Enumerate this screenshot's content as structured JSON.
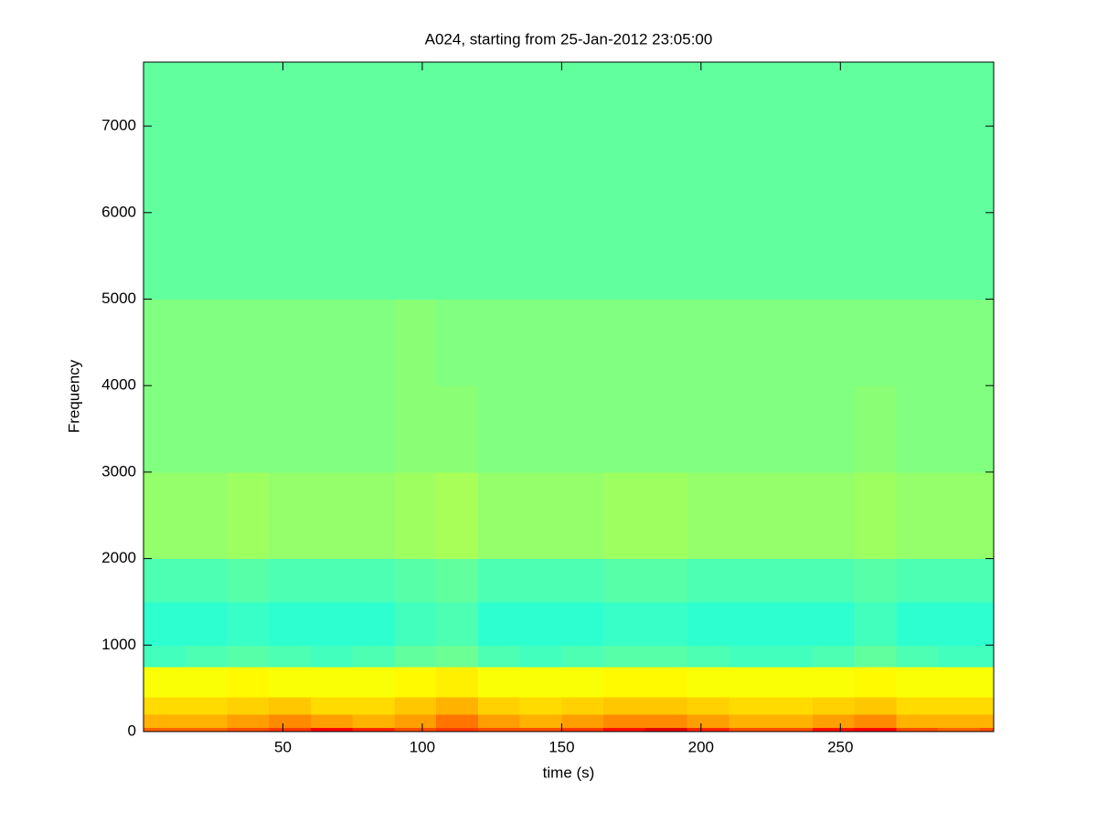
{
  "chart_data": {
    "type": "heatmap",
    "title": "A024, starting from 25-Jan-2012 23:05:00",
    "x_label": "time (s)",
    "y_label": "Frequency",
    "colormap": "jet",
    "zlim": [
      0,
      1
    ],
    "xlim": [
      0,
      305
    ],
    "ylim": [
      0,
      7740
    ],
    "xticks": [
      50,
      100,
      150,
      200,
      250
    ],
    "yticks": [
      0,
      1000,
      2000,
      3000,
      4000,
      5000,
      6000,
      7000
    ],
    "time_bins": [
      0,
      15,
      30,
      45,
      60,
      75,
      90,
      105,
      120,
      135,
      150,
      165,
      180,
      195,
      210,
      225,
      240,
      255,
      270,
      285,
      300,
      305
    ],
    "freq_bins": [
      0,
      50,
      200,
      400,
      750,
      1000,
      1500,
      2000,
      3000,
      4000,
      5000,
      7740
    ],
    "z": [
      [
        0.78,
        0.78,
        0.8,
        0.82,
        0.88,
        0.84,
        0.8,
        0.82,
        0.8,
        0.8,
        0.82,
        0.86,
        0.9,
        0.84,
        0.8,
        0.8,
        0.86,
        0.88,
        0.8,
        0.78,
        0.8
      ],
      [
        0.7,
        0.7,
        0.72,
        0.74,
        0.72,
        0.7,
        0.72,
        0.76,
        0.72,
        0.7,
        0.72,
        0.74,
        0.74,
        0.72,
        0.7,
        0.7,
        0.72,
        0.74,
        0.7,
        0.7,
        0.7
      ],
      [
        0.66,
        0.66,
        0.67,
        0.68,
        0.66,
        0.66,
        0.68,
        0.7,
        0.67,
        0.66,
        0.67,
        0.68,
        0.68,
        0.67,
        0.66,
        0.66,
        0.67,
        0.68,
        0.66,
        0.66,
        0.66
      ],
      [
        0.62,
        0.62,
        0.63,
        0.62,
        0.62,
        0.62,
        0.63,
        0.64,
        0.62,
        0.62,
        0.62,
        0.63,
        0.63,
        0.62,
        0.62,
        0.62,
        0.62,
        0.63,
        0.62,
        0.62,
        0.62
      ],
      [
        0.44,
        0.45,
        0.46,
        0.45,
        0.44,
        0.45,
        0.47,
        0.48,
        0.45,
        0.44,
        0.45,
        0.46,
        0.46,
        0.45,
        0.44,
        0.44,
        0.45,
        0.47,
        0.45,
        0.44,
        0.44
      ],
      [
        0.42,
        0.42,
        0.43,
        0.42,
        0.42,
        0.42,
        0.44,
        0.45,
        0.42,
        0.42,
        0.42,
        0.43,
        0.43,
        0.42,
        0.42,
        0.42,
        0.42,
        0.44,
        0.42,
        0.42,
        0.42
      ],
      [
        0.45,
        0.45,
        0.46,
        0.45,
        0.45,
        0.45,
        0.46,
        0.47,
        0.45,
        0.45,
        0.45,
        0.46,
        0.46,
        0.45,
        0.45,
        0.45,
        0.45,
        0.46,
        0.45,
        0.45,
        0.45
      ],
      [
        0.52,
        0.52,
        0.53,
        0.52,
        0.52,
        0.52,
        0.53,
        0.54,
        0.52,
        0.52,
        0.52,
        0.53,
        0.53,
        0.52,
        0.52,
        0.52,
        0.52,
        0.53,
        0.52,
        0.52,
        0.52
      ],
      [
        0.5,
        0.5,
        0.5,
        0.5,
        0.5,
        0.5,
        0.51,
        0.51,
        0.5,
        0.5,
        0.5,
        0.5,
        0.5,
        0.5,
        0.5,
        0.5,
        0.5,
        0.51,
        0.5,
        0.5,
        0.5
      ],
      [
        0.5,
        0.5,
        0.5,
        0.5,
        0.5,
        0.5,
        0.51,
        0.5,
        0.5,
        0.5,
        0.5,
        0.5,
        0.5,
        0.5,
        0.5,
        0.5,
        0.5,
        0.5,
        0.5,
        0.5,
        0.5
      ],
      [
        0.47,
        0.47,
        0.47,
        0.47,
        0.47,
        0.47,
        0.47,
        0.47,
        0.47,
        0.47,
        0.47,
        0.47,
        0.47,
        0.47,
        0.47,
        0.47,
        0.47,
        0.47,
        0.47,
        0.47,
        0.47
      ]
    ]
  }
}
